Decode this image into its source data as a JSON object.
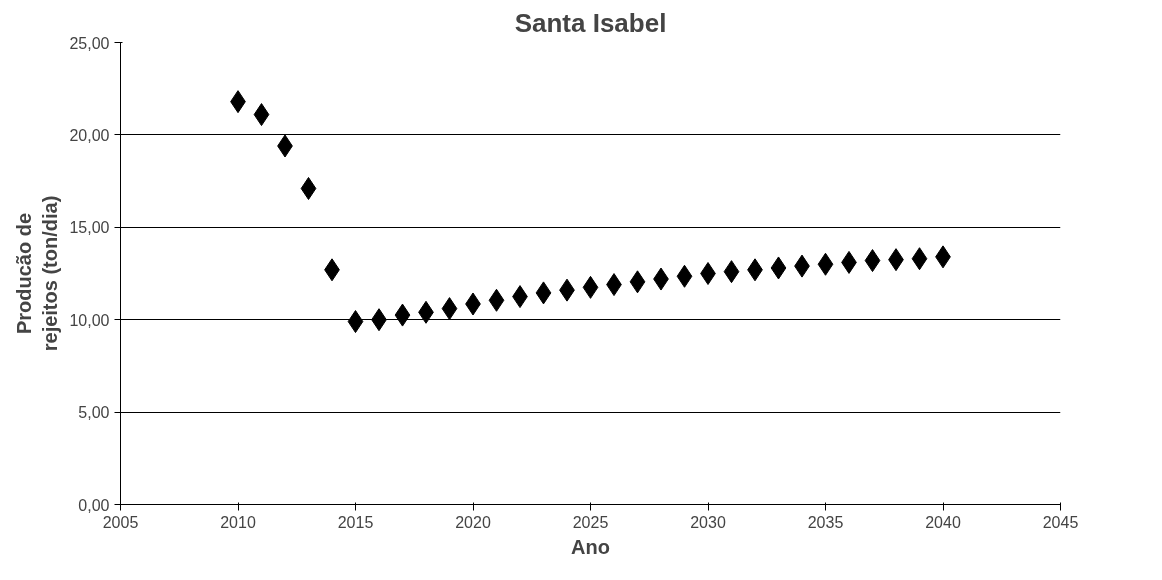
{
  "chart_data": {
    "type": "scatter",
    "title": "Santa Isabel",
    "xlabel": "Ano",
    "ylabel": "Producão de\nrejeitos (ton/dia)",
    "x": [
      2010,
      2011,
      2012,
      2013,
      2014,
      2015,
      2016,
      2017,
      2018,
      2019,
      2020,
      2021,
      2022,
      2023,
      2024,
      2025,
      2026,
      2027,
      2028,
      2029,
      2030,
      2031,
      2032,
      2033,
      2034,
      2035,
      2036,
      2037,
      2038,
      2039,
      2040
    ],
    "series": [
      {
        "color": "#000000",
        "values": [
          21.8,
          21.1,
          19.4,
          17.1,
          12.7,
          9.9,
          10.0,
          10.25,
          10.4,
          10.6,
          10.85,
          11.05,
          11.25,
          11.45,
          11.6,
          11.75,
          11.9,
          12.05,
          12.2,
          12.35,
          12.5,
          12.6,
          12.7,
          12.8,
          12.9,
          13.0,
          13.1,
          13.2,
          13.25,
          13.3,
          13.4
        ]
      }
    ],
    "xlim": [
      2005,
      2045
    ],
    "xticks": [
      2005,
      2010,
      2015,
      2020,
      2025,
      2030,
      2035,
      2040,
      2045
    ],
    "ylim": [
      0,
      25
    ],
    "yticks": [
      {
        "value": 0,
        "label": "0,00"
      },
      {
        "value": 5,
        "label": "5,00"
      },
      {
        "value": 10,
        "label": "10,00"
      },
      {
        "value": 15,
        "label": "15,00"
      },
      {
        "value": 20,
        "label": "20,00"
      },
      {
        "value": 25,
        "label": "25,00"
      }
    ],
    "grid": "y",
    "marker": "diamond"
  }
}
